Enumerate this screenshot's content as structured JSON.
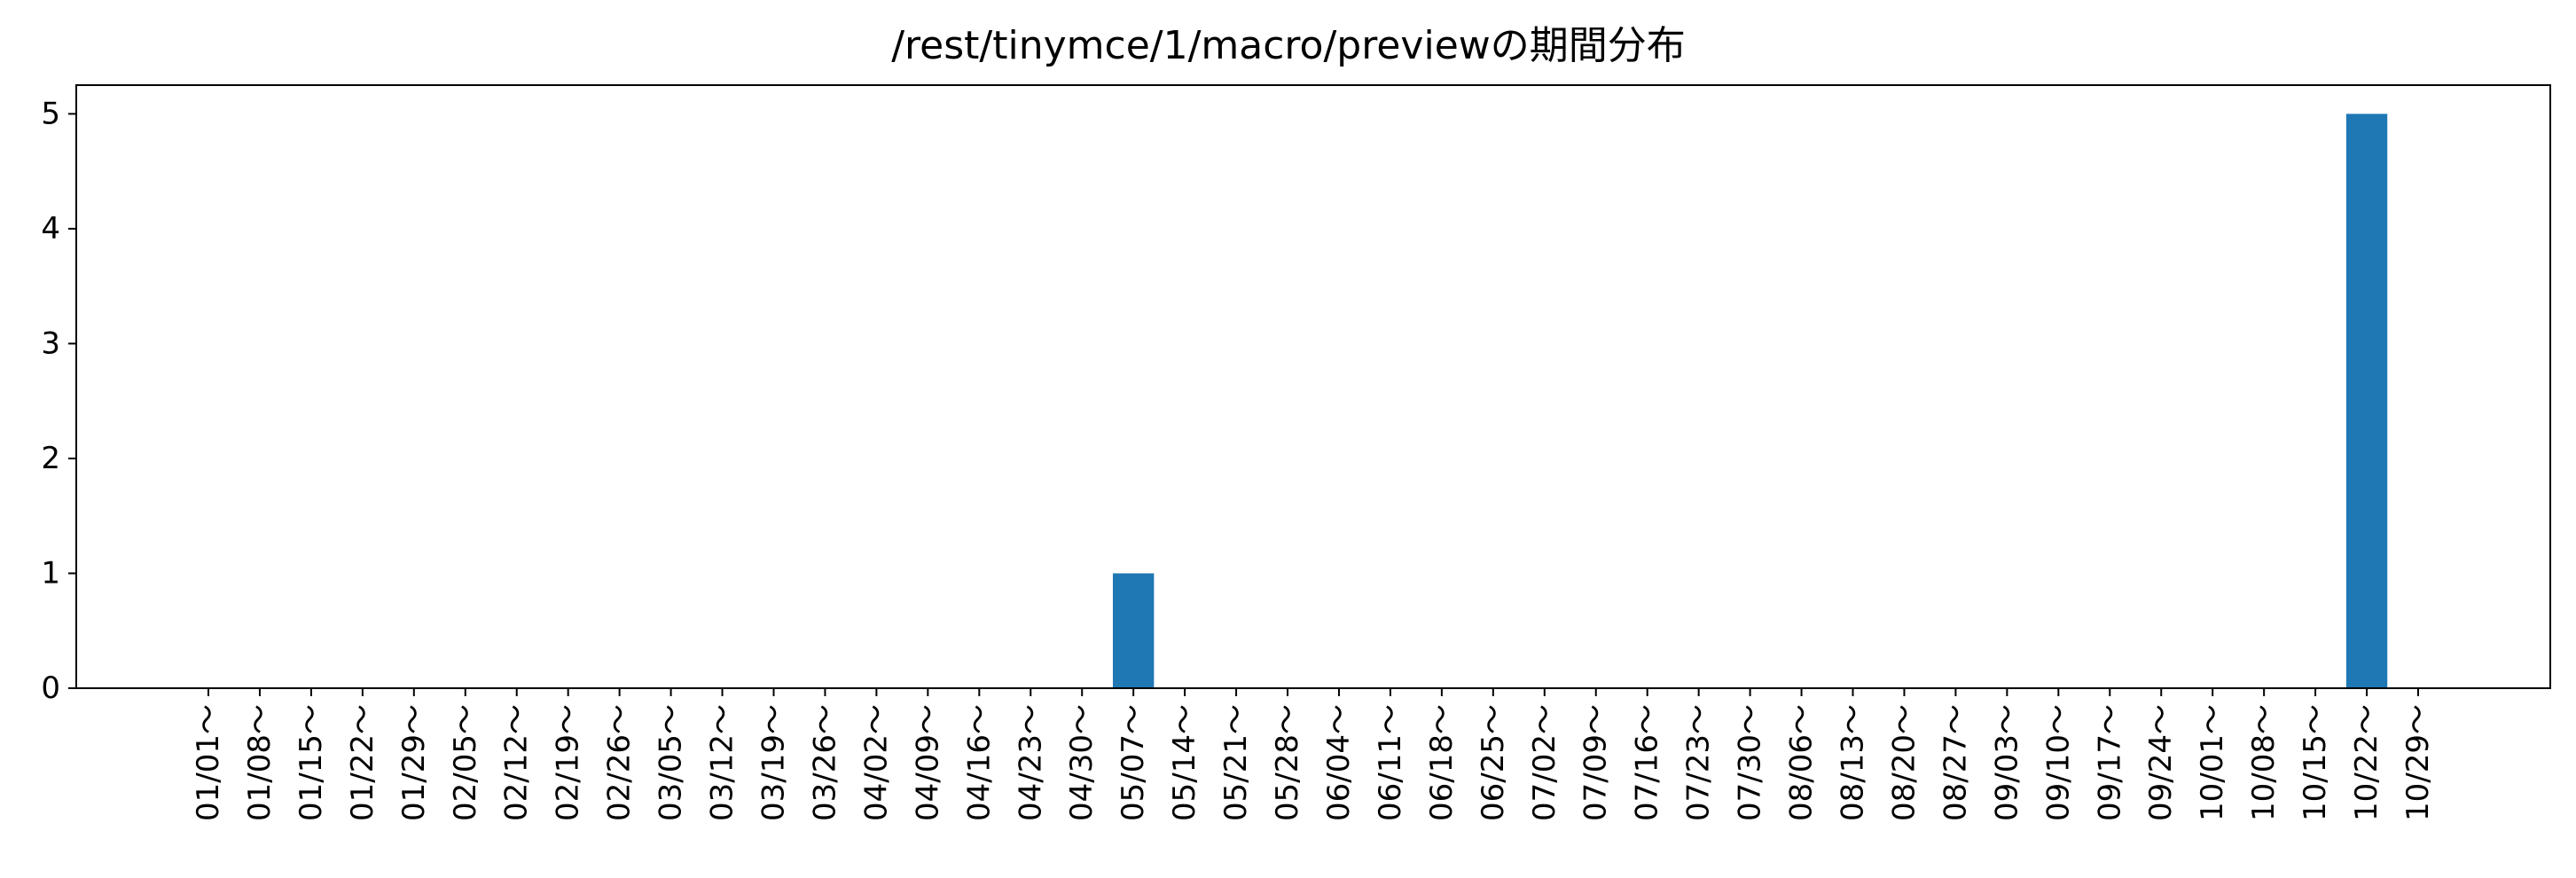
{
  "chart_data": {
    "type": "bar",
    "title": "/rest/tinymce/1/macro/previewの期間分布",
    "xlabel": "",
    "ylabel": "",
    "categories": [
      "01/01～",
      "01/08～",
      "01/15～",
      "01/22～",
      "01/29～",
      "02/05～",
      "02/12～",
      "02/19～",
      "02/26～",
      "03/05～",
      "03/12～",
      "03/19～",
      "03/26～",
      "04/02～",
      "04/09～",
      "04/16～",
      "04/23～",
      "04/30～",
      "05/07～",
      "05/14～",
      "05/21～",
      "05/28～",
      "06/04～",
      "06/11～",
      "06/18～",
      "06/25～",
      "07/02～",
      "07/09～",
      "07/16～",
      "07/23～",
      "07/30～",
      "08/06～",
      "08/13～",
      "08/20～",
      "08/27～",
      "09/03～",
      "09/10～",
      "09/17～",
      "09/24～",
      "10/01～",
      "10/08～",
      "10/15～",
      "10/22～",
      "10/29～"
    ],
    "values": [
      0,
      0,
      0,
      0,
      0,
      0,
      0,
      0,
      0,
      0,
      0,
      0,
      0,
      0,
      0,
      0,
      0,
      0,
      1,
      0,
      0,
      0,
      0,
      0,
      0,
      0,
      0,
      0,
      0,
      0,
      0,
      0,
      0,
      0,
      0,
      0,
      0,
      0,
      0,
      0,
      0,
      0,
      5,
      0
    ],
    "ylim": [
      0,
      5.25
    ],
    "yticks": [
      0,
      1,
      2,
      3,
      4,
      5
    ],
    "grid": false,
    "bar_color": "#1f77b4"
  }
}
